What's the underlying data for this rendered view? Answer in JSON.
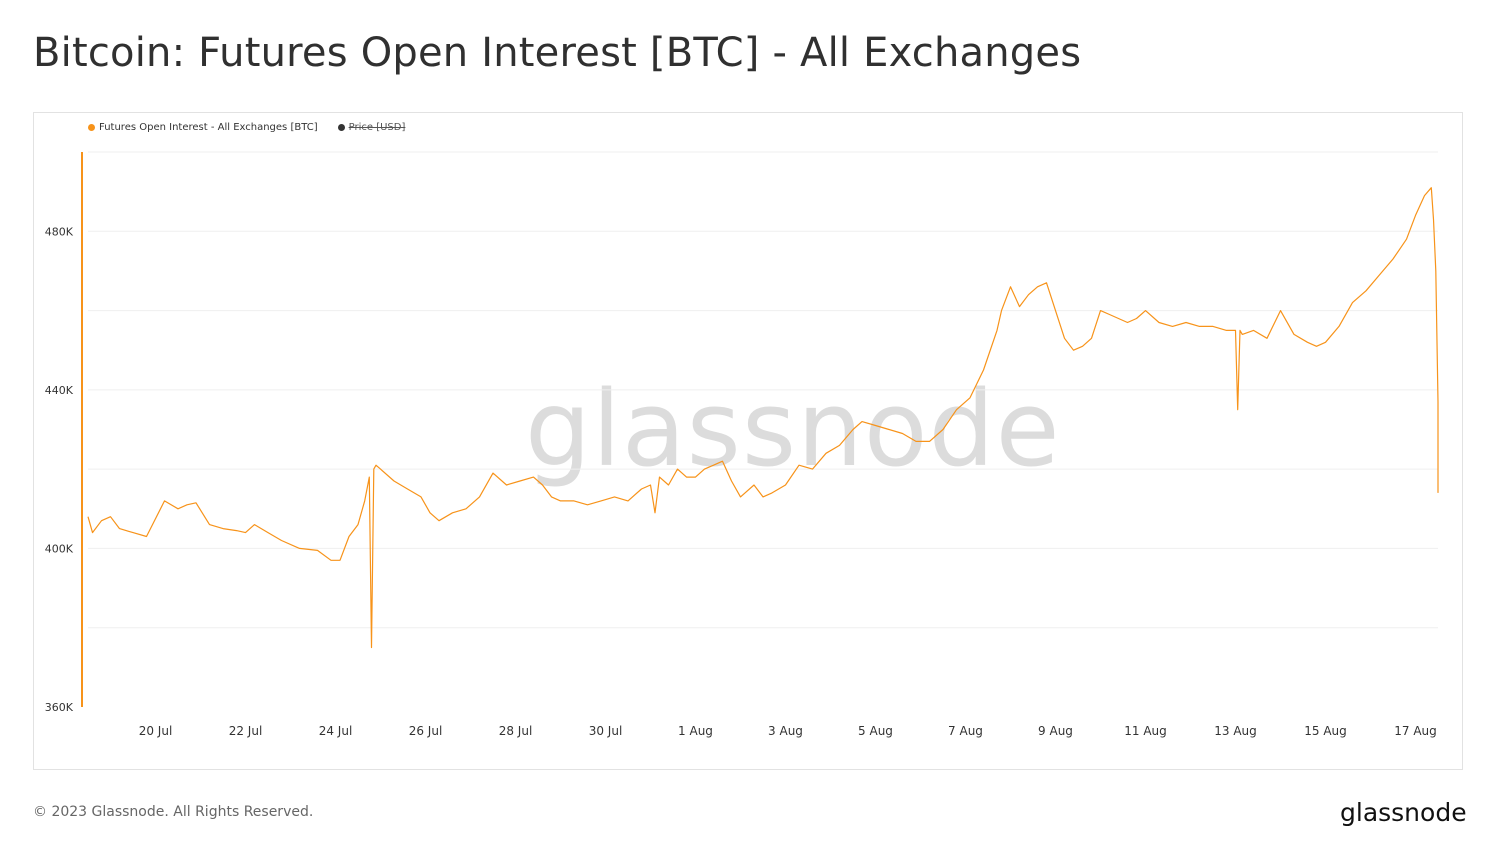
{
  "title": "Bitcoin: Futures Open Interest [BTC] - All Exchanges",
  "footer": {
    "copyright": "© 2023 Glassnode. All Rights Reserved.",
    "brand": "glassnode"
  },
  "watermark": "glassnode",
  "colors": {
    "series": "#f7931a",
    "price": "#333333",
    "grid": "#efefef"
  },
  "chart_data": {
    "type": "line",
    "legend": [
      {
        "label": "Futures Open Interest - All Exchanges [BTC]",
        "color": "#f7931a",
        "disabled": false
      },
      {
        "label": "Price [USD]",
        "color": "#333333",
        "disabled": true
      }
    ],
    "legend_position": "top-left",
    "grid": true,
    "ylim": [
      360000,
      500000
    ],
    "yticks": [
      360000,
      400000,
      440000,
      480000
    ],
    "ytick_labels": [
      "360K",
      "400K",
      "440K",
      "480K"
    ],
    "xlim": [
      18.5,
      48.5
    ],
    "xticks": [
      20,
      22,
      24,
      26,
      28,
      30,
      32,
      34,
      36,
      38,
      40,
      42,
      44,
      46,
      48
    ],
    "xtick_labels": [
      "20 Jul",
      "22 Jul",
      "24 Jul",
      "26 Jul",
      "28 Jul",
      "30 Jul",
      "1 Aug",
      "3 Aug",
      "5 Aug",
      "7 Aug",
      "9 Aug",
      "11 Aug",
      "13 Aug",
      "15 Aug",
      "17 Aug"
    ],
    "series": [
      {
        "name": "Futures Open Interest - All Exchanges [BTC]",
        "x": [
          18.5,
          18.6,
          18.8,
          19.0,
          19.2,
          19.5,
          19.8,
          20.2,
          20.5,
          20.7,
          20.9,
          21.2,
          21.5,
          21.8,
          22.0,
          22.2,
          22.5,
          22.8,
          23.2,
          23.6,
          23.9,
          24.1,
          24.3,
          24.5,
          24.65,
          24.75,
          24.8,
          24.85,
          24.9,
          25.0,
          25.3,
          25.6,
          25.9,
          26.1,
          26.3,
          26.6,
          26.9,
          27.2,
          27.5,
          27.8,
          28.1,
          28.4,
          28.6,
          28.8,
          29.0,
          29.3,
          29.6,
          29.9,
          30.2,
          30.5,
          30.8,
          31.0,
          31.1,
          31.2,
          31.4,
          31.6,
          31.8,
          32.0,
          32.2,
          32.4,
          32.6,
          32.8,
          33.0,
          33.1,
          33.3,
          33.5,
          33.7,
          34.0,
          34.3,
          34.6,
          34.9,
          35.2,
          35.5,
          35.7,
          36.0,
          36.3,
          36.6,
          36.9,
          37.2,
          37.5,
          37.8,
          38.1,
          38.4,
          38.7,
          38.8,
          38.9,
          39.0,
          39.2,
          39.4,
          39.6,
          39.8,
          40.0,
          40.2,
          40.4,
          40.6,
          40.8,
          41.0,
          41.2,
          41.4,
          41.6,
          41.8,
          42.0,
          42.3,
          42.6,
          42.9,
          43.2,
          43.5,
          43.8,
          44.0,
          44.05,
          44.1,
          44.15,
          44.4,
          44.7,
          45.0,
          45.3,
          45.6,
          45.8,
          46.0,
          46.3,
          46.6,
          46.9,
          47.2,
          47.5,
          47.8,
          48.0,
          48.2,
          48.35,
          48.4,
          48.45,
          48.5,
          48.5
        ],
        "values": [
          408000,
          404000,
          407000,
          408000,
          405000,
          404000,
          403000,
          412000,
          410000,
          411000,
          411500,
          406000,
          405000,
          404500,
          404000,
          406000,
          404000,
          402000,
          400000,
          399500,
          397000,
          397000,
          403000,
          406000,
          412000,
          418000,
          375000,
          420000,
          421000,
          420000,
          417000,
          415000,
          413000,
          409000,
          407000,
          409000,
          410000,
          413000,
          419000,
          416000,
          417000,
          418000,
          416000,
          413000,
          412000,
          412000,
          411000,
          412000,
          413000,
          412000,
          415000,
          416000,
          409000,
          418000,
          416000,
          420000,
          418000,
          418000,
          420000,
          421000,
          422000,
          417000,
          413000,
          414000,
          416000,
          413000,
          414000,
          416000,
          421000,
          420000,
          424000,
          426000,
          430000,
          432000,
          431000,
          430000,
          429000,
          427000,
          427000,
          430000,
          435000,
          438000,
          445000,
          455000,
          460000,
          463000,
          466000,
          461000,
          464000,
          466000,
          467000,
          460000,
          453000,
          450000,
          451000,
          453000,
          460000,
          459000,
          458000,
          457000,
          458000,
          460000,
          457000,
          456000,
          457000,
          456000,
          456000,
          455000,
          455000,
          435000,
          455000,
          454000,
          455000,
          453000,
          460000,
          454000,
          452000,
          451000,
          452000,
          456000,
          462000,
          465000,
          469000,
          473000,
          478000,
          484000,
          489000,
          491000,
          483000,
          470000,
          437000,
          414000
        ]
      }
    ]
  }
}
